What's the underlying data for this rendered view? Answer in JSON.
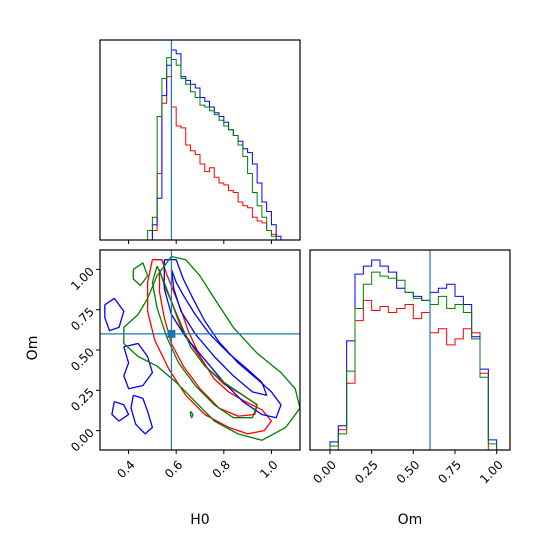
{
  "chart_data": {
    "type": "corner",
    "parameters": [
      "H0",
      "Om"
    ],
    "truths": {
      "H0": 0.58,
      "Om": 0.6
    },
    "xlim": {
      "H0": [
        0.28,
        1.12
      ],
      "Om": [
        -0.12,
        1.08
      ]
    },
    "ylim": {
      "Om": [
        -0.12,
        1.12
      ]
    },
    "ticks": {
      "H0": [
        0.4,
        0.6,
        0.8,
        1.0
      ],
      "H0_labels": [
        "0.4",
        "0.6",
        "0.8",
        "1.0"
      ],
      "Om": [
        0.0,
        0.25,
        0.5,
        0.75,
        1.0
      ],
      "Om_labels": [
        "0.00",
        "0.25",
        "0.50",
        "0.75",
        "1.00"
      ]
    },
    "series_colors": {
      "red": "#ff0000",
      "blue": "#0000ff",
      "green": "#008000"
    },
    "truth_color": "#1f77b4",
    "marginals": {
      "H0": {
        "bins": [
          0.3,
          0.32,
          0.34,
          0.36,
          0.38,
          0.4,
          0.42,
          0.44,
          0.46,
          0.48,
          0.5,
          0.52,
          0.54,
          0.56,
          0.58,
          0.6,
          0.62,
          0.64,
          0.66,
          0.68,
          0.7,
          0.72,
          0.74,
          0.76,
          0.78,
          0.8,
          0.82,
          0.84,
          0.86,
          0.88,
          0.9,
          0.92,
          0.94,
          0.96,
          0.98,
          1.0,
          1.02,
          1.04,
          1.06,
          1.08
        ],
        "red": [
          0,
          0,
          0,
          0,
          0,
          0,
          0,
          0,
          0,
          0,
          5,
          35,
          72,
          86,
          70,
          60,
          59,
          50,
          47,
          45,
          40,
          36,
          38,
          33,
          30,
          29,
          26,
          25,
          20,
          18,
          17,
          12,
          10,
          9,
          5,
          3,
          0,
          0,
          0,
          0
        ],
        "blue": [
          0,
          0,
          0,
          0,
          0,
          0,
          0,
          0,
          0,
          0,
          8,
          22,
          76,
          92,
          100,
          98,
          86,
          84,
          82,
          80,
          75,
          73,
          70,
          67,
          65,
          62,
          58,
          55,
          52,
          48,
          46,
          40,
          30,
          20,
          15,
          8,
          2,
          0,
          0,
          0
        ],
        "green": [
          0,
          0,
          0,
          0,
          0,
          0,
          0,
          0,
          0,
          5,
          12,
          65,
          85,
          96,
          95,
          92,
          85,
          82,
          78,
          75,
          71,
          70,
          68,
          66,
          63,
          60,
          58,
          55,
          50,
          44,
          35,
          25,
          18,
          12,
          5,
          2,
          0,
          0,
          0,
          0
        ]
      },
      "Om": {
        "bins": [
          -0.05,
          0.0,
          0.05,
          0.1,
          0.15,
          0.2,
          0.25,
          0.3,
          0.35,
          0.4,
          0.45,
          0.5,
          0.55,
          0.6,
          0.65,
          0.7,
          0.75,
          0.8,
          0.85,
          0.9,
          0.95,
          1.0
        ],
        "red": [
          0,
          0,
          10,
          33,
          64,
          74,
          69,
          71,
          68,
          70,
          72,
          65,
          68,
          58,
          60,
          52,
          55,
          60,
          58,
          38,
          0,
          0
        ],
        "blue": [
          0,
          4,
          12,
          54,
          87,
          91,
          94,
          91,
          88,
          80,
          78,
          76,
          74,
          78,
          80,
          82,
          76,
          72,
          56,
          40,
          5,
          0
        ],
        "green": [
          0,
          2,
          8,
          39,
          70,
          82,
          88,
          86,
          85,
          84,
          78,
          75,
          74,
          72,
          76,
          70,
          72,
          68,
          55,
          36,
          3,
          0
        ]
      }
    },
    "contours_H0_Om": {
      "red": [
        [
          [
            0.5,
            1.06
          ],
          [
            0.54,
            1.06
          ],
          [
            0.56,
            0.97
          ],
          [
            0.59,
            0.86
          ],
          [
            0.62,
            0.75
          ],
          [
            0.65,
            0.62
          ],
          [
            0.7,
            0.46
          ],
          [
            0.76,
            0.32
          ],
          [
            0.82,
            0.24
          ],
          [
            0.89,
            0.18
          ],
          [
            0.96,
            0.13
          ],
          [
            1.0,
            0.06
          ],
          [
            0.97,
            0.0
          ],
          [
            0.9,
            -0.02
          ],
          [
            0.82,
            0.02
          ],
          [
            0.72,
            0.1
          ],
          [
            0.64,
            0.22
          ],
          [
            0.57,
            0.38
          ],
          [
            0.51,
            0.56
          ],
          [
            0.48,
            0.74
          ],
          [
            0.48,
            0.92
          ],
          [
            0.5,
            1.06
          ]
        ],
        [
          [
            0.53,
            1.0
          ],
          [
            0.55,
            0.9
          ],
          [
            0.58,
            0.8
          ],
          [
            0.62,
            0.64
          ],
          [
            0.67,
            0.52
          ],
          [
            0.73,
            0.39
          ],
          [
            0.8,
            0.29
          ],
          [
            0.88,
            0.22
          ],
          [
            0.94,
            0.16
          ],
          [
            0.93,
            0.1
          ],
          [
            0.86,
            0.09
          ],
          [
            0.78,
            0.14
          ],
          [
            0.7,
            0.26
          ],
          [
            0.63,
            0.4
          ],
          [
            0.58,
            0.54
          ],
          [
            0.55,
            0.7
          ],
          [
            0.53,
            0.86
          ],
          [
            0.53,
            1.0
          ]
        ]
      ],
      "blue": [
        [
          [
            0.55,
            1.06
          ],
          [
            0.6,
            1.06
          ],
          [
            0.63,
            0.94
          ],
          [
            0.67,
            0.82
          ],
          [
            0.72,
            0.68
          ],
          [
            0.78,
            0.55
          ],
          [
            0.86,
            0.42
          ],
          [
            0.94,
            0.32
          ],
          [
            1.0,
            0.24
          ],
          [
            1.04,
            0.16
          ],
          [
            1.02,
            0.08
          ],
          [
            0.96,
            0.1
          ],
          [
            0.88,
            0.18
          ],
          [
            0.8,
            0.3
          ],
          [
            0.72,
            0.44
          ],
          [
            0.64,
            0.58
          ],
          [
            0.58,
            0.72
          ],
          [
            0.55,
            0.88
          ],
          [
            0.55,
            1.06
          ]
        ],
        [
          [
            0.58,
            1.0
          ],
          [
            0.6,
            0.92
          ],
          [
            0.63,
            0.84
          ],
          [
            0.68,
            0.72
          ],
          [
            0.74,
            0.6
          ],
          [
            0.82,
            0.48
          ],
          [
            0.9,
            0.38
          ],
          [
            0.96,
            0.3
          ],
          [
            0.98,
            0.22
          ],
          [
            0.92,
            0.24
          ],
          [
            0.84,
            0.34
          ],
          [
            0.76,
            0.46
          ],
          [
            0.68,
            0.6
          ],
          [
            0.62,
            0.74
          ],
          [
            0.59,
            0.88
          ],
          [
            0.58,
            1.0
          ]
        ],
        [
          [
            0.3,
            0.78
          ],
          [
            0.34,
            0.82
          ],
          [
            0.38,
            0.74
          ],
          [
            0.36,
            0.64
          ],
          [
            0.32,
            0.62
          ],
          [
            0.3,
            0.7
          ],
          [
            0.3,
            0.78
          ]
        ],
        [
          [
            0.38,
            0.52
          ],
          [
            0.44,
            0.54
          ],
          [
            0.48,
            0.46
          ],
          [
            0.5,
            0.36
          ],
          [
            0.46,
            0.28
          ],
          [
            0.4,
            0.26
          ],
          [
            0.38,
            0.34
          ],
          [
            0.4,
            0.42
          ],
          [
            0.38,
            0.52
          ]
        ],
        [
          [
            0.34,
            0.18
          ],
          [
            0.38,
            0.16
          ],
          [
            0.4,
            0.1
          ],
          [
            0.36,
            0.06
          ],
          [
            0.33,
            0.1
          ],
          [
            0.34,
            0.18
          ]
        ],
        [
          [
            0.42,
            0.22
          ],
          [
            0.46,
            0.2
          ],
          [
            0.48,
            0.12
          ],
          [
            0.5,
            0.02
          ],
          [
            0.47,
            -0.02
          ],
          [
            0.43,
            0.04
          ],
          [
            0.41,
            0.14
          ],
          [
            0.42,
            0.22
          ]
        ]
      ],
      "green": [
        [
          [
            0.58,
            1.08
          ],
          [
            0.64,
            1.06
          ],
          [
            0.7,
            0.96
          ],
          [
            0.76,
            0.82
          ],
          [
            0.84,
            0.64
          ],
          [
            0.94,
            0.48
          ],
          [
            1.04,
            0.36
          ],
          [
            1.1,
            0.26
          ],
          [
            1.12,
            0.14
          ],
          [
            1.06,
            0.02
          ],
          [
            0.96,
            -0.06
          ],
          [
            0.86,
            -0.02
          ],
          [
            0.76,
            0.06
          ],
          [
            0.68,
            0.18
          ],
          [
            0.6,
            0.3
          ],
          [
            0.52,
            0.4
          ],
          [
            0.44,
            0.46
          ],
          [
            0.38,
            0.54
          ],
          [
            0.38,
            0.64
          ],
          [
            0.44,
            0.72
          ],
          [
            0.48,
            0.82
          ],
          [
            0.52,
            0.96
          ],
          [
            0.58,
            1.08
          ]
        ],
        [
          [
            0.52,
            1.02
          ],
          [
            0.55,
            0.92
          ],
          [
            0.58,
            0.8
          ],
          [
            0.62,
            0.66
          ],
          [
            0.66,
            0.52
          ],
          [
            0.72,
            0.4
          ],
          [
            0.8,
            0.3
          ],
          [
            0.88,
            0.22
          ],
          [
            0.94,
            0.16
          ],
          [
            0.92,
            0.08
          ],
          [
            0.84,
            0.08
          ],
          [
            0.76,
            0.16
          ],
          [
            0.68,
            0.28
          ],
          [
            0.61,
            0.42
          ],
          [
            0.56,
            0.58
          ],
          [
            0.52,
            0.76
          ],
          [
            0.5,
            0.92
          ],
          [
            0.52,
            1.02
          ]
        ],
        [
          [
            0.42,
            1.0
          ],
          [
            0.46,
            1.04
          ],
          [
            0.48,
            0.96
          ],
          [
            0.45,
            0.9
          ],
          [
            0.42,
            0.94
          ],
          [
            0.42,
            1.0
          ]
        ],
        [
          [
            0.66,
            0.12
          ],
          [
            0.67,
            0.1
          ],
          [
            0.665,
            0.08
          ],
          [
            0.66,
            0.1
          ],
          [
            0.66,
            0.12
          ]
        ]
      ]
    }
  }
}
